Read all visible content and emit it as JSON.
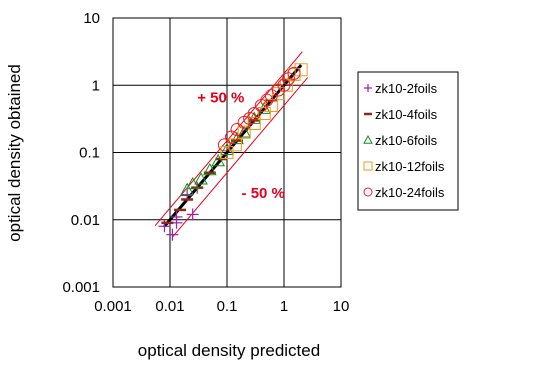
{
  "chart_data": {
    "type": "scatter",
    "title": "",
    "xlabel": "optical density predicted",
    "ylabel": "optical density obtained",
    "xscale": "log",
    "yscale": "log",
    "xlim": [
      0.001,
      10
    ],
    "ylim": [
      0.001,
      10
    ],
    "x_ticks": [
      "0.001",
      "0.01",
      "0.1",
      "1",
      "10"
    ],
    "y_ticks": [
      "0.001",
      "0.01",
      "0.1",
      "1",
      "10"
    ],
    "grid": true,
    "legend_position": "right",
    "annotations": [
      {
        "text": "+ 50 %",
        "x": 0.03,
        "y": 0.55,
        "color": "#e8001c"
      },
      {
        "text": "- 50 %",
        "x": 0.18,
        "y": 0.021,
        "color": "#e8001c"
      }
    ],
    "reference_lines": [
      {
        "name": "identity",
        "color": "#000000",
        "points": [
          [
            0.008,
            0.008
          ],
          [
            2.0,
            2.0
          ]
        ]
      },
      {
        "name": "+50%",
        "color": "#e8001c",
        "points": [
          [
            0.0055,
            0.0082
          ],
          [
            2.1,
            3.15
          ]
        ]
      },
      {
        "name": "-50%",
        "color": "#e8001c",
        "points": [
          [
            0.011,
            0.0055
          ],
          [
            2.6,
            1.3
          ]
        ]
      }
    ],
    "series": [
      {
        "name": "zk10-2foils",
        "marker": "plus",
        "color": "#9b1fb0",
        "points": [
          [
            0.008,
            0.008
          ],
          [
            0.011,
            0.006
          ],
          [
            0.013,
            0.009
          ],
          [
            0.025,
            0.012
          ],
          [
            0.02,
            0.023
          ],
          [
            0.03,
            0.03
          ],
          [
            0.013,
            0.011
          ]
        ]
      },
      {
        "name": "zk10-4foils",
        "marker": "dash",
        "color": "#8b2a1a",
        "points": [
          [
            0.009,
            0.009
          ],
          [
            0.015,
            0.014
          ],
          [
            0.02,
            0.02
          ],
          [
            0.03,
            0.03
          ],
          [
            0.05,
            0.05
          ],
          [
            0.08,
            0.08
          ],
          [
            0.15,
            0.15
          ],
          [
            0.3,
            0.3
          ],
          [
            0.6,
            0.6
          ],
          [
            1.2,
            1.2
          ]
        ]
      },
      {
        "name": "zk10-6foils",
        "marker": "triangle",
        "color": "#1a8a1a",
        "points": [
          [
            0.02,
            0.028
          ],
          [
            0.025,
            0.034
          ],
          [
            0.035,
            0.04
          ],
          [
            0.05,
            0.055
          ],
          [
            0.07,
            0.075
          ],
          [
            0.1,
            0.11
          ],
          [
            0.15,
            0.16
          ],
          [
            0.2,
            0.2
          ],
          [
            0.3,
            0.32
          ],
          [
            0.45,
            0.45
          ]
        ]
      },
      {
        "name": "zk10-12foils",
        "marker": "square",
        "color": "#f29a1c",
        "points": [
          [
            0.1,
            0.1
          ],
          [
            0.14,
            0.13
          ],
          [
            0.2,
            0.2
          ],
          [
            0.3,
            0.27
          ],
          [
            0.45,
            0.38
          ],
          [
            0.6,
            0.5
          ],
          [
            0.8,
            0.75
          ],
          [
            1.1,
            1.0
          ],
          [
            1.5,
            1.45
          ],
          [
            2.0,
            1.7
          ]
        ]
      },
      {
        "name": "zk10-24foils",
        "marker": "circle",
        "color": "#ee1c24",
        "points": [
          [
            0.09,
            0.13
          ],
          [
            0.12,
            0.17
          ],
          [
            0.15,
            0.22
          ],
          [
            0.2,
            0.28
          ],
          [
            0.25,
            0.32
          ],
          [
            0.3,
            0.38
          ],
          [
            0.4,
            0.5
          ],
          [
            0.5,
            0.6
          ],
          [
            0.6,
            0.7
          ],
          [
            0.8,
            0.85
          ],
          [
            1.0,
            1.0
          ],
          [
            1.2,
            1.25
          ],
          [
            1.5,
            1.5
          ]
        ]
      }
    ]
  }
}
